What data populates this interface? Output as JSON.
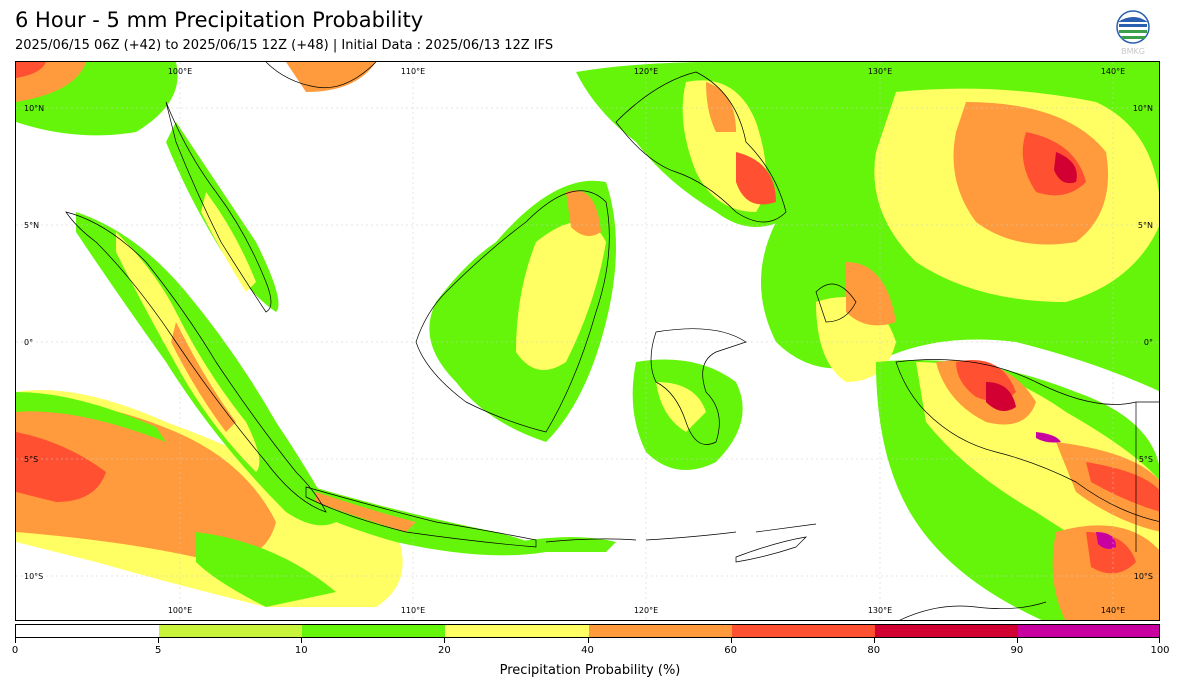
{
  "header": {
    "title": "6 Hour - 5 mm Precipitation Probability",
    "subtitle": "2025/06/15 06Z (+42) to 2025/06/15 12Z (+48) | Initial Data : 2025/06/13 12Z IFS",
    "logo_text": "BMKG"
  },
  "map": {
    "lon_labels": [
      "100°E",
      "110°E",
      "120°E",
      "130°E",
      "140°E"
    ],
    "lat_labels": [
      "10°N",
      "5°N",
      "0°",
      "5°S",
      "10°S"
    ],
    "lon_range": [
      93.4,
      142.6
    ],
    "lat_range": [
      -12.0,
      12.0
    ],
    "colors": {
      "land_outline": "#000000",
      "gridline": "#cccccc"
    }
  },
  "colorbar": {
    "title": "Precipitation Probability (%)",
    "ticks": [
      "0",
      "5",
      "10",
      "20",
      "40",
      "60",
      "80",
      "90",
      "100"
    ],
    "colors": [
      "#ffffff",
      "#c8f53c",
      "#64f50a",
      "#ffff64",
      "#ff9b3c",
      "#ff5032",
      "#d20032",
      "#c800a0"
    ]
  }
}
